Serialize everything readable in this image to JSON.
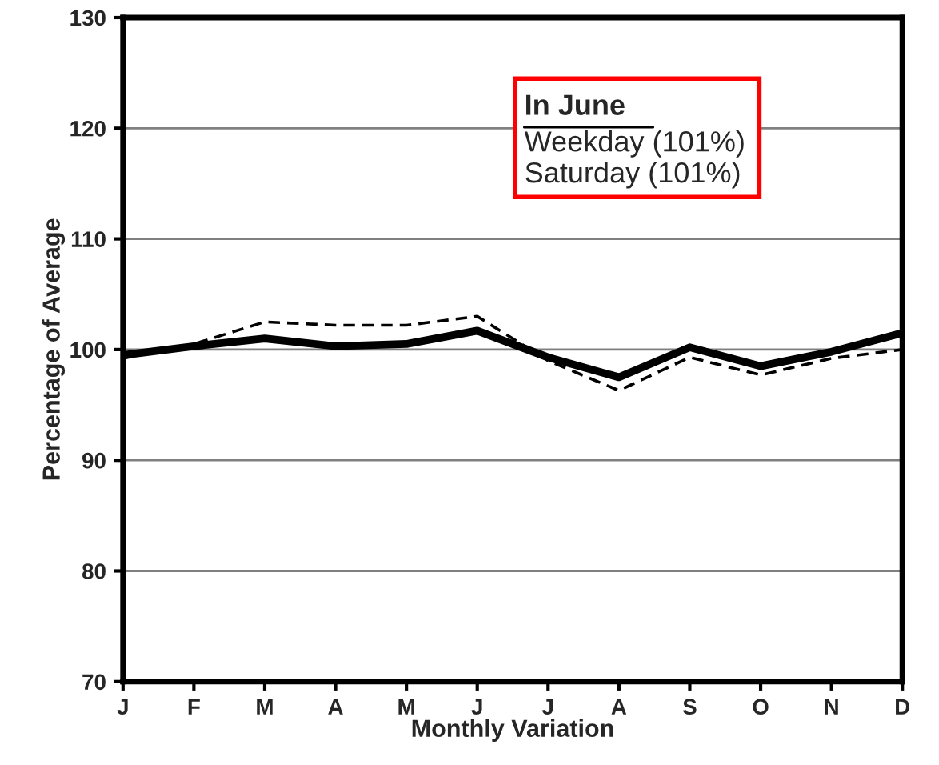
{
  "chart_data": {
    "type": "line",
    "xlabel": "Monthly Variation",
    "ylabel": "Percentage of Average",
    "categories": [
      "J",
      "F",
      "M",
      "A",
      "M",
      "J",
      "J",
      "A",
      "S",
      "O",
      "N",
      "D"
    ],
    "series": [
      {
        "color": "#000000",
        "line_style": "solid",
        "values": [
          99.5,
          100.3,
          101.0,
          100.3,
          100.5,
          101.7,
          99.3,
          97.5,
          100.2,
          98.5,
          99.8,
          101.5
        ]
      },
      {
        "color": "#000000",
        "line_style": "dashed",
        "values": [
          99.2,
          100.5,
          102.5,
          102.2,
          102.2,
          103.0,
          99.0,
          96.3,
          99.3,
          97.7,
          99.2,
          100.0
        ]
      }
    ],
    "ylim": [
      70,
      130
    ],
    "yticks": [
      70,
      80,
      90,
      100,
      110,
      120,
      130
    ],
    "grid": "y",
    "legend": false,
    "marker": "none",
    "annotations": [
      "In June\nWeekday (101%)\nSaturday (101%)"
    ]
  }
}
